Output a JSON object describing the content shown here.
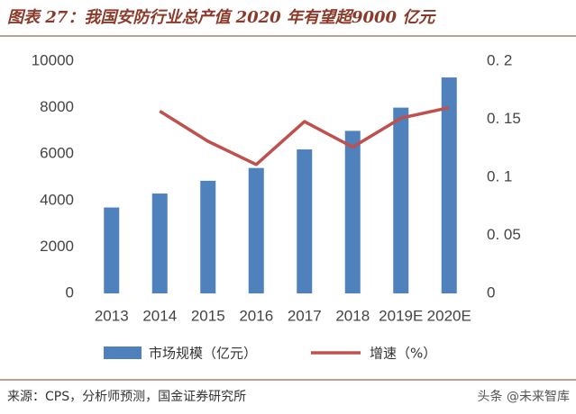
{
  "chart_data": {
    "type": "bar",
    "title": "图表 27：我国安防行业总产值 2020 年有望超9000 亿元",
    "categories": [
      "2013",
      "2014",
      "2015",
      "2016",
      "2017",
      "2018",
      "2019E",
      "2020E"
    ],
    "series": [
      {
        "name": "市场规模（亿元）",
        "type": "bar",
        "color": "#4f81bd",
        "values": [
          3700,
          4300,
          4850,
          5400,
          6200,
          7000,
          8000,
          9300
        ]
      },
      {
        "name": "增速（%）",
        "type": "line",
        "axis": "y2",
        "color": "#c0504d",
        "values": [
          null,
          0.157,
          0.131,
          0.111,
          0.148,
          0.126,
          0.151,
          0.16
        ]
      }
    ],
    "ylim": [
      0,
      10000
    ],
    "yticks": [
      0,
      2000,
      4000,
      6000,
      8000,
      10000
    ],
    "y2lim": [
      0,
      0.2
    ],
    "y2ticks": [
      0,
      {
        "value": 0.05,
        "label": "0. 05"
      },
      {
        "value": 0.1,
        "label": "0. 1"
      },
      {
        "value": 0.15,
        "label": "0. 15"
      },
      {
        "value": 0.2,
        "label": "0. 2"
      }
    ],
    "legend": "bottom",
    "source": "来源：CPS，分析师预测，国金证券研究所",
    "watermark": "头条 @未来智库"
  }
}
